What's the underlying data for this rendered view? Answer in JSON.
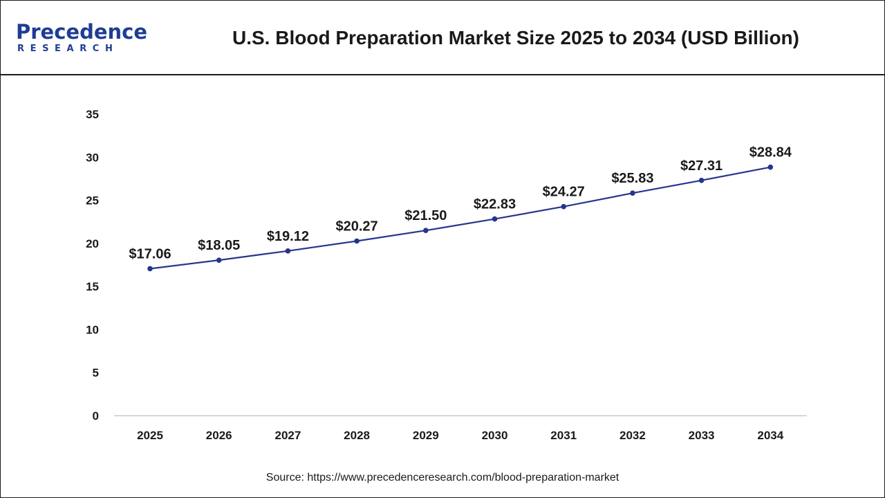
{
  "header": {
    "logo": {
      "name": "Precedence",
      "sub": "RESEARCH"
    },
    "title": "U.S. Blood Preparation Market Size 2025 to 2034 (USD Billion)"
  },
  "colors": {
    "line": "#26358c",
    "axis": "#c8c8c8",
    "logo": "#1f3d93",
    "text": "#1a1a1a"
  },
  "chart_data": {
    "type": "line",
    "title": "U.S. Blood Preparation Market Size 2025 to 2034 (USD Billion)",
    "xlabel": "",
    "ylabel": "",
    "categories": [
      "2025",
      "2026",
      "2027",
      "2028",
      "2029",
      "2030",
      "2031",
      "2032",
      "2033",
      "2034"
    ],
    "values": [
      17.06,
      18.05,
      19.12,
      20.27,
      21.5,
      22.83,
      24.27,
      25.83,
      27.31,
      28.84
    ],
    "data_labels": [
      "$17.06",
      "$18.05",
      "$19.12",
      "$20.27",
      "$21.50",
      "$22.83",
      "$24.27",
      "$25.83",
      "$27.31",
      "$28.84"
    ],
    "ylim": [
      0,
      35
    ],
    "yticks": [
      "0",
      "5",
      "10",
      "15",
      "20",
      "25",
      "30",
      "35"
    ],
    "grid": false,
    "legend": "none"
  },
  "source": "Source: https://www.precedenceresearch.com/blood-preparation-market"
}
